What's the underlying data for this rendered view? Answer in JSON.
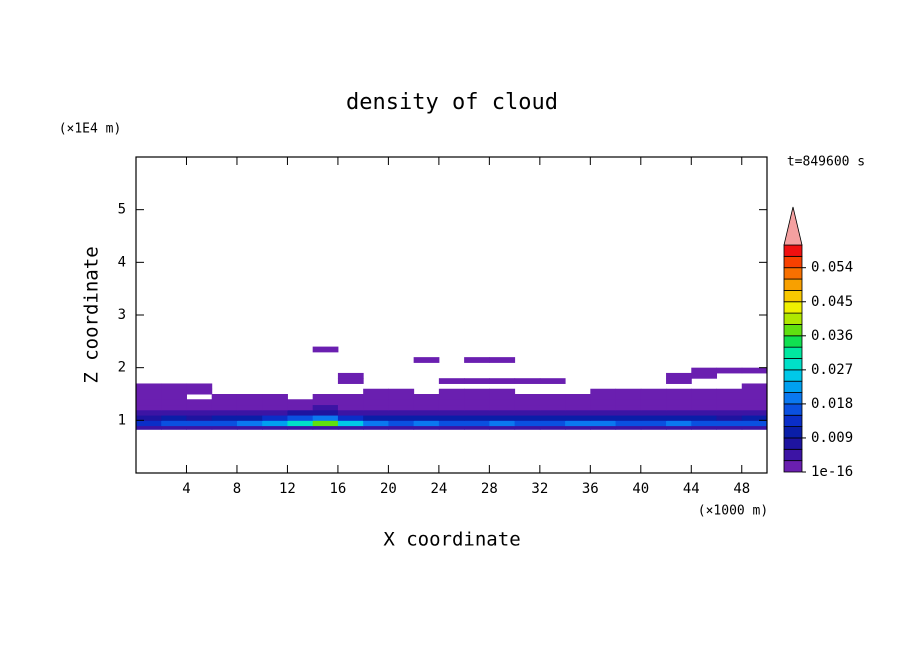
{
  "chart_data": {
    "type": "contour",
    "title": "density of cloud",
    "x_label": "X coordinate",
    "y_label": "Z coordinate",
    "x_unit": "(×1000 m)",
    "y_unit": "(×1E4 m)",
    "time_label": "t=849600 s",
    "xlim": [
      0,
      50
    ],
    "ylim": [
      0,
      6
    ],
    "xticks": [
      4,
      8,
      12,
      16,
      20,
      24,
      28,
      32,
      36,
      40,
      44,
      48
    ],
    "yticks": [
      1,
      2,
      3,
      4,
      5
    ],
    "x_edges": [
      0,
      2,
      4,
      6,
      8,
      10,
      12,
      14,
      16,
      18,
      20,
      22,
      24,
      26,
      28,
      30,
      32,
      34,
      36,
      38,
      40,
      42,
      44,
      46,
      48,
      50
    ],
    "z_edges": [
      0.83,
      0.9,
      1.0,
      1.1,
      1.2,
      1.3,
      1.4,
      1.5,
      1.6,
      1.7,
      1.8,
      1.9,
      2.0,
      2.1,
      2.2,
      2.3,
      2.4
    ],
    "values": [
      [
        0.004,
        0.004,
        0.004,
        0.004,
        0.004,
        0.005,
        0.005,
        0.006,
        0.005,
        0.004,
        0.004,
        0.004,
        0.004,
        0.004,
        0.004,
        0.004,
        0.004,
        0.004,
        0.004,
        0.004,
        0.004,
        0.004,
        0.004,
        0.004,
        0.004
      ],
      [
        0.015,
        0.017,
        0.016,
        0.018,
        0.02,
        0.022,
        0.03,
        0.038,
        0.025,
        0.02,
        0.018,
        0.02,
        0.016,
        0.018,
        0.02,
        0.017,
        0.018,
        0.02,
        0.019,
        0.018,
        0.017,
        0.02,
        0.018,
        0.016,
        0.017
      ],
      [
        0.009,
        0.01,
        0.009,
        0.011,
        0.012,
        0.013,
        0.016,
        0.02,
        0.014,
        0.012,
        0.01,
        0.011,
        0.01,
        0.012,
        0.011,
        0.01,
        0.012,
        0.011,
        0.01,
        0.011,
        0.012,
        0.01,
        0.011,
        0.009,
        0.01
      ],
      [
        0.004,
        0.005,
        0.005,
        0.006,
        0.005,
        0.006,
        0.007,
        0.008,
        0.006,
        0.005,
        0.005,
        0.006,
        0.005,
        0.005,
        0.006,
        0.005,
        0.005,
        0.006,
        0.005,
        0.005,
        0.006,
        0.005,
        0.005,
        0.004,
        0.005
      ],
      [
        0.002,
        0.002,
        0.003,
        0.003,
        0.002,
        0.003,
        0.003,
        0.004,
        0.003,
        0.002,
        0.003,
        0.003,
        0.002,
        0.003,
        0.002,
        0.003,
        0.003,
        0.002,
        0.003,
        0.002,
        0.003,
        0.002,
        0.003,
        0.002,
        0.002
      ],
      [
        0.001,
        0.001,
        0.001,
        0.001,
        0.001,
        0.001,
        0.001,
        0.002,
        0.001,
        0.001,
        0.001,
        0.001,
        0.001,
        0.001,
        0.001,
        0.001,
        0.001,
        0.001,
        0.001,
        0.001,
        0.001,
        0.001,
        0.001,
        0.001,
        0.001
      ],
      [
        0.0005,
        0.0005,
        null,
        0.0005,
        0.0005,
        0.0005,
        null,
        0.0005,
        0.0005,
        0.0005,
        0.0005,
        0.0005,
        0.0005,
        0.0005,
        0.0005,
        0.0005,
        0.0005,
        0.0005,
        0.0005,
        0.0005,
        0.0005,
        0.0005,
        0.0005,
        0.0005,
        0.0005
      ],
      [
        0.0005,
        0.0005,
        0.0005,
        null,
        null,
        null,
        null,
        null,
        null,
        0.0005,
        0.0005,
        null,
        0.0005,
        0.0005,
        0.0005,
        null,
        null,
        null,
        0.0005,
        0.0005,
        0.0005,
        0.0005,
        0.0005,
        0.0005,
        0.0005
      ],
      [
        0.0005,
        0.0005,
        0.0005,
        null,
        null,
        null,
        null,
        null,
        null,
        null,
        null,
        null,
        null,
        null,
        null,
        null,
        null,
        null,
        null,
        null,
        null,
        null,
        null,
        null,
        0.0005
      ],
      [
        null,
        null,
        null,
        null,
        null,
        null,
        null,
        null,
        0.0005,
        null,
        null,
        null,
        0.0005,
        0.0005,
        0.0005,
        0.0005,
        0.0005,
        null,
        null,
        null,
        null,
        0.0005,
        null,
        null,
        null
      ],
      [
        null,
        null,
        null,
        null,
        null,
        null,
        null,
        null,
        0.0005,
        null,
        null,
        null,
        null,
        null,
        null,
        null,
        null,
        null,
        null,
        null,
        null,
        0.0005,
        0.0005,
        null,
        null
      ],
      [
        null,
        null,
        null,
        null,
        null,
        null,
        null,
        null,
        null,
        null,
        null,
        null,
        null,
        null,
        null,
        null,
        null,
        null,
        null,
        null,
        null,
        null,
        0.0005,
        0.0005,
        0.0005
      ],
      [
        null,
        null,
        null,
        null,
        null,
        null,
        null,
        null,
        null,
        null,
        null,
        null,
        null,
        null,
        null,
        null,
        null,
        null,
        null,
        null,
        null,
        null,
        null,
        null,
        null
      ],
      [
        null,
        null,
        null,
        null,
        null,
        null,
        null,
        null,
        null,
        null,
        null,
        0.0005,
        null,
        0.0005,
        0.0005,
        null,
        null,
        null,
        null,
        null,
        null,
        null,
        null,
        null,
        null
      ],
      [
        null,
        null,
        null,
        null,
        null,
        null,
        null,
        null,
        null,
        null,
        null,
        null,
        null,
        null,
        null,
        null,
        null,
        null,
        null,
        null,
        null,
        null,
        null,
        null,
        null
      ],
      [
        null,
        null,
        null,
        null,
        null,
        null,
        null,
        0.0005,
        null,
        null,
        null,
        null,
        null,
        null,
        null,
        null,
        null,
        null,
        null,
        null,
        null,
        null,
        null,
        null,
        null
      ]
    ],
    "colorbar": {
      "clim": [
        1e-16,
        0.06
      ],
      "ticks": [
        {
          "value": 1e-16,
          "label": "1e-16"
        },
        0.009,
        0.018,
        0.027,
        0.036,
        0.045,
        0.054
      ],
      "colors": [
        "#6a1fb0",
        "#3c14a4",
        "#1e14a0",
        "#0a1ea8",
        "#0a2ec8",
        "#0a50e0",
        "#0a78f0",
        "#00a0f0",
        "#00c8e8",
        "#00e0c8",
        "#00e8a0",
        "#10e050",
        "#60e010",
        "#b0e800",
        "#f0f000",
        "#f8c800",
        "#f8a000",
        "#f87000",
        "#f84000",
        "#f01010"
      ],
      "extend_color": "#f4a0a0"
    }
  }
}
